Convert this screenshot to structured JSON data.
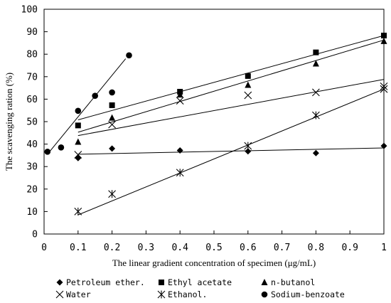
{
  "chart_data": {
    "type": "scatter",
    "xlabel": "The linear gradient concentration of specimen (μg/mL)",
    "ylabel": "The scavenging ration (%)",
    "xlim": [
      0,
      1
    ],
    "ylim": [
      0,
      100
    ],
    "xticks": [
      "0",
      "0.1",
      "0.2",
      "0.3",
      "0.4",
      "0.5",
      "0.6",
      "0.7",
      "0.8",
      "0.9",
      "1"
    ],
    "yticks": [
      "0",
      "10",
      "20",
      "30",
      "40",
      "50",
      "60",
      "70",
      "80",
      "90",
      "100"
    ],
    "grid": false,
    "legend_position": "bottom",
    "series": [
      {
        "name": "Petroleum ether.",
        "marker": "diamond",
        "x": [
          0.1,
          0.2,
          0.4,
          0.6,
          0.8,
          1.0
        ],
        "y": [
          33.8,
          38.0,
          37.2,
          36.8,
          36.0,
          39.2
        ],
        "trend": [
          [
            0.1,
            35.5
          ],
          [
            1.0,
            38.3
          ]
        ]
      },
      {
        "name": "Ethyl acetate",
        "marker": "square",
        "x": [
          0.1,
          0.2,
          0.4,
          0.6,
          0.8,
          1.0
        ],
        "y": [
          48.3,
          57.3,
          63.3,
          70.3,
          80.8,
          88.3
        ],
        "trend": [
          [
            0.1,
            50.8
          ],
          [
            1.0,
            88.3
          ]
        ]
      },
      {
        "name": "n-butanol",
        "marker": "triangle",
        "x": [
          0.1,
          0.2,
          0.4,
          0.6,
          0.8,
          1.0
        ],
        "y": [
          41.0,
          51.7,
          62.0,
          66.3,
          75.8,
          85.8
        ],
        "trend": [
          [
            0.1,
            45.3
          ],
          [
            1.0,
            86.3
          ]
        ]
      },
      {
        "name": "Water",
        "marker": "x",
        "x": [
          0.1,
          0.2,
          0.4,
          0.6,
          0.8,
          1.0
        ],
        "y": [
          35.3,
          48.7,
          59.3,
          61.7,
          63.0,
          65.7
        ],
        "trend": [
          [
            0.1,
            43.8
          ],
          [
            1.0,
            68.8
          ]
        ]
      },
      {
        "name": "Ethanol.",
        "marker": "asterisk",
        "x": [
          0.1,
          0.2,
          0.4,
          0.6,
          0.8,
          1.0
        ],
        "y": [
          10.0,
          17.8,
          27.3,
          39.2,
          52.8,
          64.5
        ],
        "trend": [
          [
            0.1,
            8.5
          ],
          [
            1.0,
            64.5
          ]
        ]
      },
      {
        "name": "Sodium-benzoate",
        "marker": "circle",
        "x": [
          0.01,
          0.05,
          0.1,
          0.15,
          0.2,
          0.25
        ],
        "y": [
          36.6,
          38.5,
          54.8,
          61.5,
          63.0,
          79.5
        ],
        "trend": [
          [
            0.01,
            35.5
          ],
          [
            0.24,
            78.0
          ]
        ]
      }
    ]
  }
}
